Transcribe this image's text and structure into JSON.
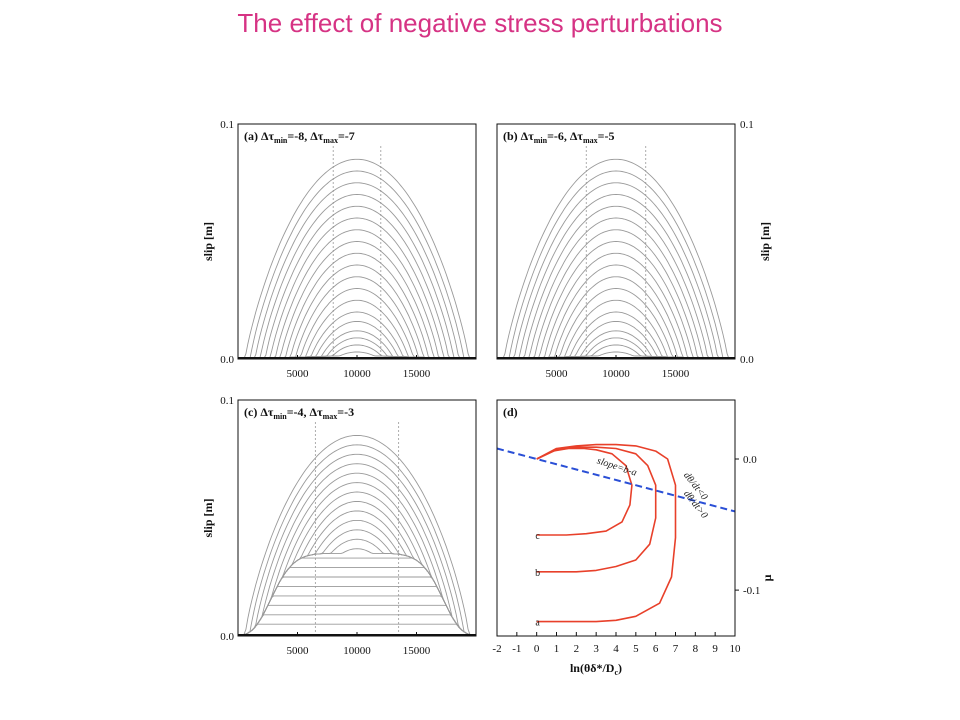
{
  "slide": {
    "title": "The effect of negative stress perturbations"
  },
  "chart_data": [
    {
      "type": "line",
      "panel": "a",
      "title": "(a) Δτmin=-8, Δτmax=-7",
      "title_parts": [
        "(a) Δτ",
        "min",
        "=-8, Δτ",
        "max",
        "=-7"
      ],
      "ylabel": "slip [m]",
      "y_side": "left",
      "xlim": [
        0,
        20000
      ],
      "ylim": [
        0,
        0.1
      ],
      "xticks": [
        5000,
        10000,
        15000
      ],
      "xtick_labels": [
        "5000",
        "10000",
        "15000"
      ],
      "yticks": [
        0,
        0.1
      ],
      "ytick_labels": [
        "0.0",
        "0.1"
      ],
      "dashed_lines_x": [
        8000,
        12000
      ],
      "series": {
        "center": 10000,
        "peaks": [
          0.003,
          0.006,
          0.009,
          0.012,
          0.016,
          0.02,
          0.025,
          0.03,
          0.035,
          0.04,
          0.045,
          0.05,
          0.055,
          0.06,
          0.065,
          0.07,
          0.075,
          0.08,
          0.085
        ],
        "base_slip": 0,
        "description_note": ""
      }
    },
    {
      "type": "line",
      "panel": "b",
      "title": "(b) Δτmin=-6, Δτmax=-5",
      "title_parts": [
        "(b) Δτ",
        "min",
        "=-6, Δτ",
        "max",
        "=-5"
      ],
      "ylabel": "slip [m]",
      "y_side": "right",
      "xlim": [
        0,
        20000
      ],
      "ylim": [
        0,
        0.1
      ],
      "xticks": [
        5000,
        10000,
        15000
      ],
      "xtick_labels": [
        "5000",
        "10000",
        "15000"
      ],
      "yticks": [
        0,
        0.1
      ],
      "ytick_labels": [
        "0.0",
        "0.1"
      ],
      "dashed_lines_x": [
        7500,
        12500
      ],
      "series": {
        "center": 10000,
        "peaks": [
          0.003,
          0.006,
          0.009,
          0.012,
          0.016,
          0.02,
          0.025,
          0.03,
          0.035,
          0.04,
          0.045,
          0.05,
          0.055,
          0.06,
          0.065,
          0.07,
          0.075,
          0.08,
          0.085
        ],
        "base_slip": 0
      }
    },
    {
      "type": "line",
      "panel": "c",
      "title": "(c) Δτmin=-4, Δτmax=-3",
      "title_parts": [
        "(c) Δτ",
        "min",
        "=-4, Δτ",
        "max",
        "=-3"
      ],
      "ylabel": "slip [m]",
      "y_side": "left",
      "xlim": [
        0,
        20000
      ],
      "ylim": [
        0,
        0.1
      ],
      "xticks": [
        5000,
        10000,
        15000
      ],
      "xtick_labels": [
        "5000",
        "10000",
        "15000"
      ],
      "yticks": [
        0,
        0.1
      ],
      "ytick_labels": [
        "0.0",
        "0.1"
      ],
      "dashed_lines_x": [
        6500,
        13500
      ],
      "series": {
        "center": 10000,
        "peaks": [
          0.005,
          0.009,
          0.013,
          0.017,
          0.021,
          0.025,
          0.029,
          0.033,
          0.037,
          0.041,
          0.045,
          0.049,
          0.053,
          0.057,
          0.061,
          0.065,
          0.069,
          0.073,
          0.077,
          0.081,
          0.085
        ],
        "base_slip": 0.035
      }
    },
    {
      "type": "line",
      "panel": "d",
      "title": "(d)",
      "xlabel": "ln(θδ*/Dc)",
      "xlabel_parts": [
        "ln(θδ*/D",
        "c",
        ")"
      ],
      "ylabel": "μ",
      "y_side": "right",
      "xlim": [
        -2,
        10
      ],
      "ylim": [
        -0.135,
        0.045
      ],
      "xticks": [
        -2,
        -1,
        0,
        1,
        2,
        3,
        4,
        5,
        6,
        7,
        8,
        9,
        10
      ],
      "xtick_labels": [
        "-2",
        "-1",
        "0",
        "1",
        "2",
        "3",
        "4",
        "5",
        "6",
        "7",
        "8",
        "9",
        "10"
      ],
      "yticks": [
        0,
        -0.1
      ],
      "ytick_labels": [
        "0.0",
        "-0.1"
      ],
      "line_color": "#e8402a",
      "dash_color": "#2a4fd6",
      "dash_line": {
        "x": [
          -2,
          10
        ],
        "y": [
          0.008,
          -0.04
        ]
      },
      "series": [
        {
          "name": "c",
          "x": [
            0.0,
            0.8,
            1.6,
            2.4,
            3.0,
            3.8,
            4.5,
            4.8,
            4.7,
            4.3,
            3.5,
            2.5,
            1.5,
            0.5,
            0.0
          ],
          "y": [
            0.0,
            0.006,
            0.008,
            0.008,
            0.007,
            0.004,
            -0.005,
            -0.02,
            -0.035,
            -0.048,
            -0.055,
            -0.057,
            -0.058,
            -0.058,
            -0.058
          ]
        },
        {
          "name": "b",
          "x": [
            0.0,
            1.0,
            2.0,
            3.0,
            4.0,
            5.0,
            5.6,
            6.0,
            6.0,
            5.7,
            5.0,
            4.0,
            3.0,
            2.0,
            1.0,
            0.0
          ],
          "y": [
            0.0,
            0.007,
            0.009,
            0.009,
            0.008,
            0.004,
            -0.005,
            -0.02,
            -0.045,
            -0.065,
            -0.077,
            -0.082,
            -0.085,
            -0.086,
            -0.086,
            -0.086
          ]
        },
        {
          "name": "a",
          "x": [
            0.0,
            1.0,
            2.0,
            3.0,
            4.0,
            5.0,
            6.0,
            6.6,
            7.0,
            7.0,
            6.8,
            6.2,
            5.0,
            4.0,
            3.0,
            2.0,
            1.0,
            0.0
          ],
          "y": [
            0.0,
            0.008,
            0.01,
            0.011,
            0.011,
            0.01,
            0.006,
            0.0,
            -0.02,
            -0.06,
            -0.09,
            -0.11,
            -0.12,
            -0.123,
            -0.124,
            -0.124,
            -0.124,
            -0.124
          ]
        }
      ],
      "annotations": [
        {
          "text": "slope=b-a",
          "x": 4.0,
          "y": -0.008,
          "rotate": 18
        },
        {
          "text": "dθ/dt<0",
          "x": 7.9,
          "y": -0.022,
          "rotate": 52
        },
        {
          "text": "dθ/dt>0",
          "x": 7.9,
          "y": -0.036,
          "rotate": 52
        }
      ],
      "curve_labels": [
        {
          "text": "c",
          "x": 0.05,
          "y": -0.058
        },
        {
          "text": "b",
          "x": 0.05,
          "y": -0.086
        },
        {
          "text": "a",
          "x": 0.05,
          "y": -0.124
        }
      ]
    }
  ]
}
